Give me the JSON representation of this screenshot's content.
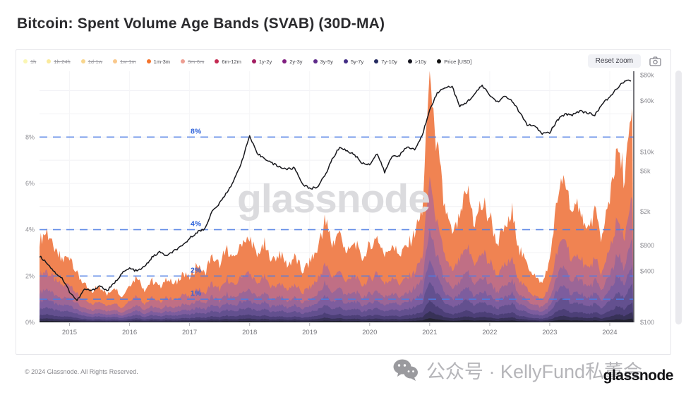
{
  "page": {
    "title": "Bitcoin: Spent Volume Age Bands (SVAB) (30D-MA)",
    "watermark": "glassnode",
    "footer_copyright": "© 2024 Glassnode. All Rights Reserved.",
    "wechat_text": "公众号 · KellyFund私董会",
    "brand_logo": "glassnode"
  },
  "toolbar": {
    "reset_zoom_label": "Reset zoom"
  },
  "legend": {
    "items": [
      {
        "label": "1h",
        "color": "#f5ef77",
        "disabled": true
      },
      {
        "label": "1h-24h",
        "color": "#f6d94a",
        "disabled": true
      },
      {
        "label": "1d-1w",
        "color": "#f3b532",
        "disabled": true
      },
      {
        "label": "1w-1m",
        "color": "#f49b2d",
        "disabled": true
      },
      {
        "label": "1m-3m",
        "color": "#f4742c",
        "disabled": false
      },
      {
        "label": "3m-6m",
        "color": "#df4e38",
        "disabled": true
      },
      {
        "label": "6m-12m",
        "color": "#c42a52",
        "disabled": false
      },
      {
        "label": "1y-2y",
        "color": "#a31d62",
        "disabled": false
      },
      {
        "label": "2y-3y",
        "color": "#811f80",
        "disabled": false
      },
      {
        "label": "3y-5y",
        "color": "#5e2a8a",
        "disabled": false
      },
      {
        "label": "5y-7y",
        "color": "#432e85",
        "disabled": false
      },
      {
        "label": "7y-10y",
        "color": "#252a60",
        "disabled": false
      },
      {
        "label": ">10y",
        "color": "#15151f",
        "disabled": false
      },
      {
        "label": "Price [USD]",
        "color": "#111111",
        "disabled": false
      }
    ]
  },
  "chart_data": {
    "type": "area",
    "stacked": true,
    "title": "Bitcoin: Spent Volume Age Bands (SVAB) (30D-MA)",
    "x_range": [
      2014.5,
      2024.4
    ],
    "x_ticks": [
      2015,
      2016,
      2017,
      2018,
      2019,
      2020,
      2021,
      2022,
      2023,
      2024
    ],
    "left_axis": {
      "scale": "linear",
      "unit": "%",
      "ylim": [
        0,
        10.84
      ],
      "ticks": [
        0,
        2,
        4,
        6,
        8
      ],
      "tick_labels": [
        "0%",
        "2%",
        "4%",
        "6%",
        "8%"
      ]
    },
    "right_axis": {
      "scale": "log",
      "unit": "USD",
      "ylim": [
        100,
        80000
      ],
      "tick_values": [
        100,
        400,
        800,
        2000,
        6000,
        10000,
        40000,
        80000
      ],
      "tick_labels": [
        "$100",
        "$400",
        "$800",
        "$2k",
        "$6k",
        "$10k",
        "$40k",
        "$80k"
      ]
    },
    "reference_lines": {
      "values": [
        1,
        2,
        4,
        8
      ],
      "labels": [
        "1%",
        "2%",
        "4%",
        "8%"
      ],
      "color": "#4d7de5",
      "style": "dashed"
    },
    "grid": true,
    "legend_position": "top",
    "x": [
      2014.5,
      2014.625,
      2014.75,
      2014.875,
      2015.0,
      2015.125,
      2015.25,
      2015.375,
      2015.5,
      2015.625,
      2015.75,
      2015.875,
      2016.0,
      2016.125,
      2016.25,
      2016.375,
      2016.5,
      2016.625,
      2016.75,
      2016.875,
      2017.0,
      2017.125,
      2017.25,
      2017.375,
      2017.5,
      2017.625,
      2017.75,
      2017.875,
      2018.0,
      2018.125,
      2018.25,
      2018.375,
      2018.5,
      2018.625,
      2018.75,
      2018.875,
      2019.0,
      2019.125,
      2019.25,
      2019.375,
      2019.5,
      2019.625,
      2019.75,
      2019.875,
      2020.0,
      2020.125,
      2020.25,
      2020.375,
      2020.5,
      2020.625,
      2020.75,
      2020.875,
      2021.0,
      2021.125,
      2021.25,
      2021.375,
      2021.5,
      2021.625,
      2021.75,
      2021.875,
      2022.0,
      2022.125,
      2022.25,
      2022.375,
      2022.5,
      2022.625,
      2022.75,
      2022.875,
      2023.0,
      2023.125,
      2023.25,
      2023.375,
      2023.5,
      2023.625,
      2023.75,
      2023.875,
      2024.0,
      2024.125,
      2024.25,
      2024.375
    ],
    "total_spent_percent": [
      3.4,
      3.9,
      3.1,
      2.7,
      2.9,
      2.1,
      1.6,
      1.3,
      1.6,
      1.2,
      1.5,
      1.1,
      1.6,
      2.0,
      1.4,
      1.8,
      1.5,
      1.9,
      1.6,
      2.1,
      1.9,
      2.5,
      2.1,
      2.9,
      2.4,
      3.2,
      2.7,
      3.5,
      3.6,
      2.9,
      3.3,
      2.6,
      3.0,
      2.4,
      2.8,
      2.2,
      2.6,
      3.1,
      4.4,
      3.4,
      3.9,
      3.0,
      3.5,
      2.8,
      3.2,
      3.7,
      2.8,
      3.4,
      2.9,
      3.3,
      3.9,
      4.8,
      10.6,
      7.3,
      4.9,
      3.7,
      4.5,
      5.7,
      4.3,
      5.1,
      4.5,
      3.5,
      4.1,
      4.7,
      3.1,
      2.5,
      2.0,
      1.7,
      2.7,
      5.3,
      6.3,
      4.5,
      5.1,
      3.9,
      4.7,
      3.6,
      5.5,
      7.5,
      6.3,
      9.5
    ],
    "bands": [
      {
        "name": ">10y",
        "fraction": 0.017,
        "fill": "#23232f"
      },
      {
        "name": "7y-10y",
        "fraction": 0.028,
        "fill": "#373157"
      },
      {
        "name": "5y-7y",
        "fraction": 0.045,
        "fill": "#4c3f77"
      },
      {
        "name": "3y-5y",
        "fraction": 0.08,
        "fill": "#63508f"
      },
      {
        "name": "2y-3y",
        "fraction": 0.09,
        "fill": "#7d5d9e"
      },
      {
        "name": "1y-2y",
        "fraction": 0.12,
        "fill": "#9b6697"
      },
      {
        "name": "6m-12m",
        "fraction": 0.2,
        "fill": "#c06f85"
      },
      {
        "name": "1m-3m",
        "fraction": 0.42,
        "fill": "#f08352"
      }
    ],
    "price_usd": [
      600,
      500,
      390,
      330,
      230,
      180,
      245,
      235,
      270,
      235,
      290,
      380,
      430,
      400,
      450,
      580,
      670,
      600,
      700,
      780,
      970,
      1150,
      1250,
      2000,
      2500,
      3400,
      4800,
      8000,
      15500,
      9500,
      8500,
      7400,
      6700,
      6300,
      6500,
      4300,
      3700,
      3900,
      5200,
      8200,
      11500,
      10300,
      9300,
      7400,
      7200,
      9600,
      5800,
      9000,
      9200,
      11500,
      10700,
      15500,
      32000,
      49000,
      58000,
      59000,
      34000,
      39000,
      48000,
      61000,
      46500,
      39000,
      45000,
      40000,
      29000,
      21000,
      20000,
      16500,
      17000,
      23500,
      28000,
      27500,
      30500,
      29000,
      27000,
      37000,
      44000,
      57000,
      68000,
      69000
    ],
    "price_color": "#17171c"
  }
}
